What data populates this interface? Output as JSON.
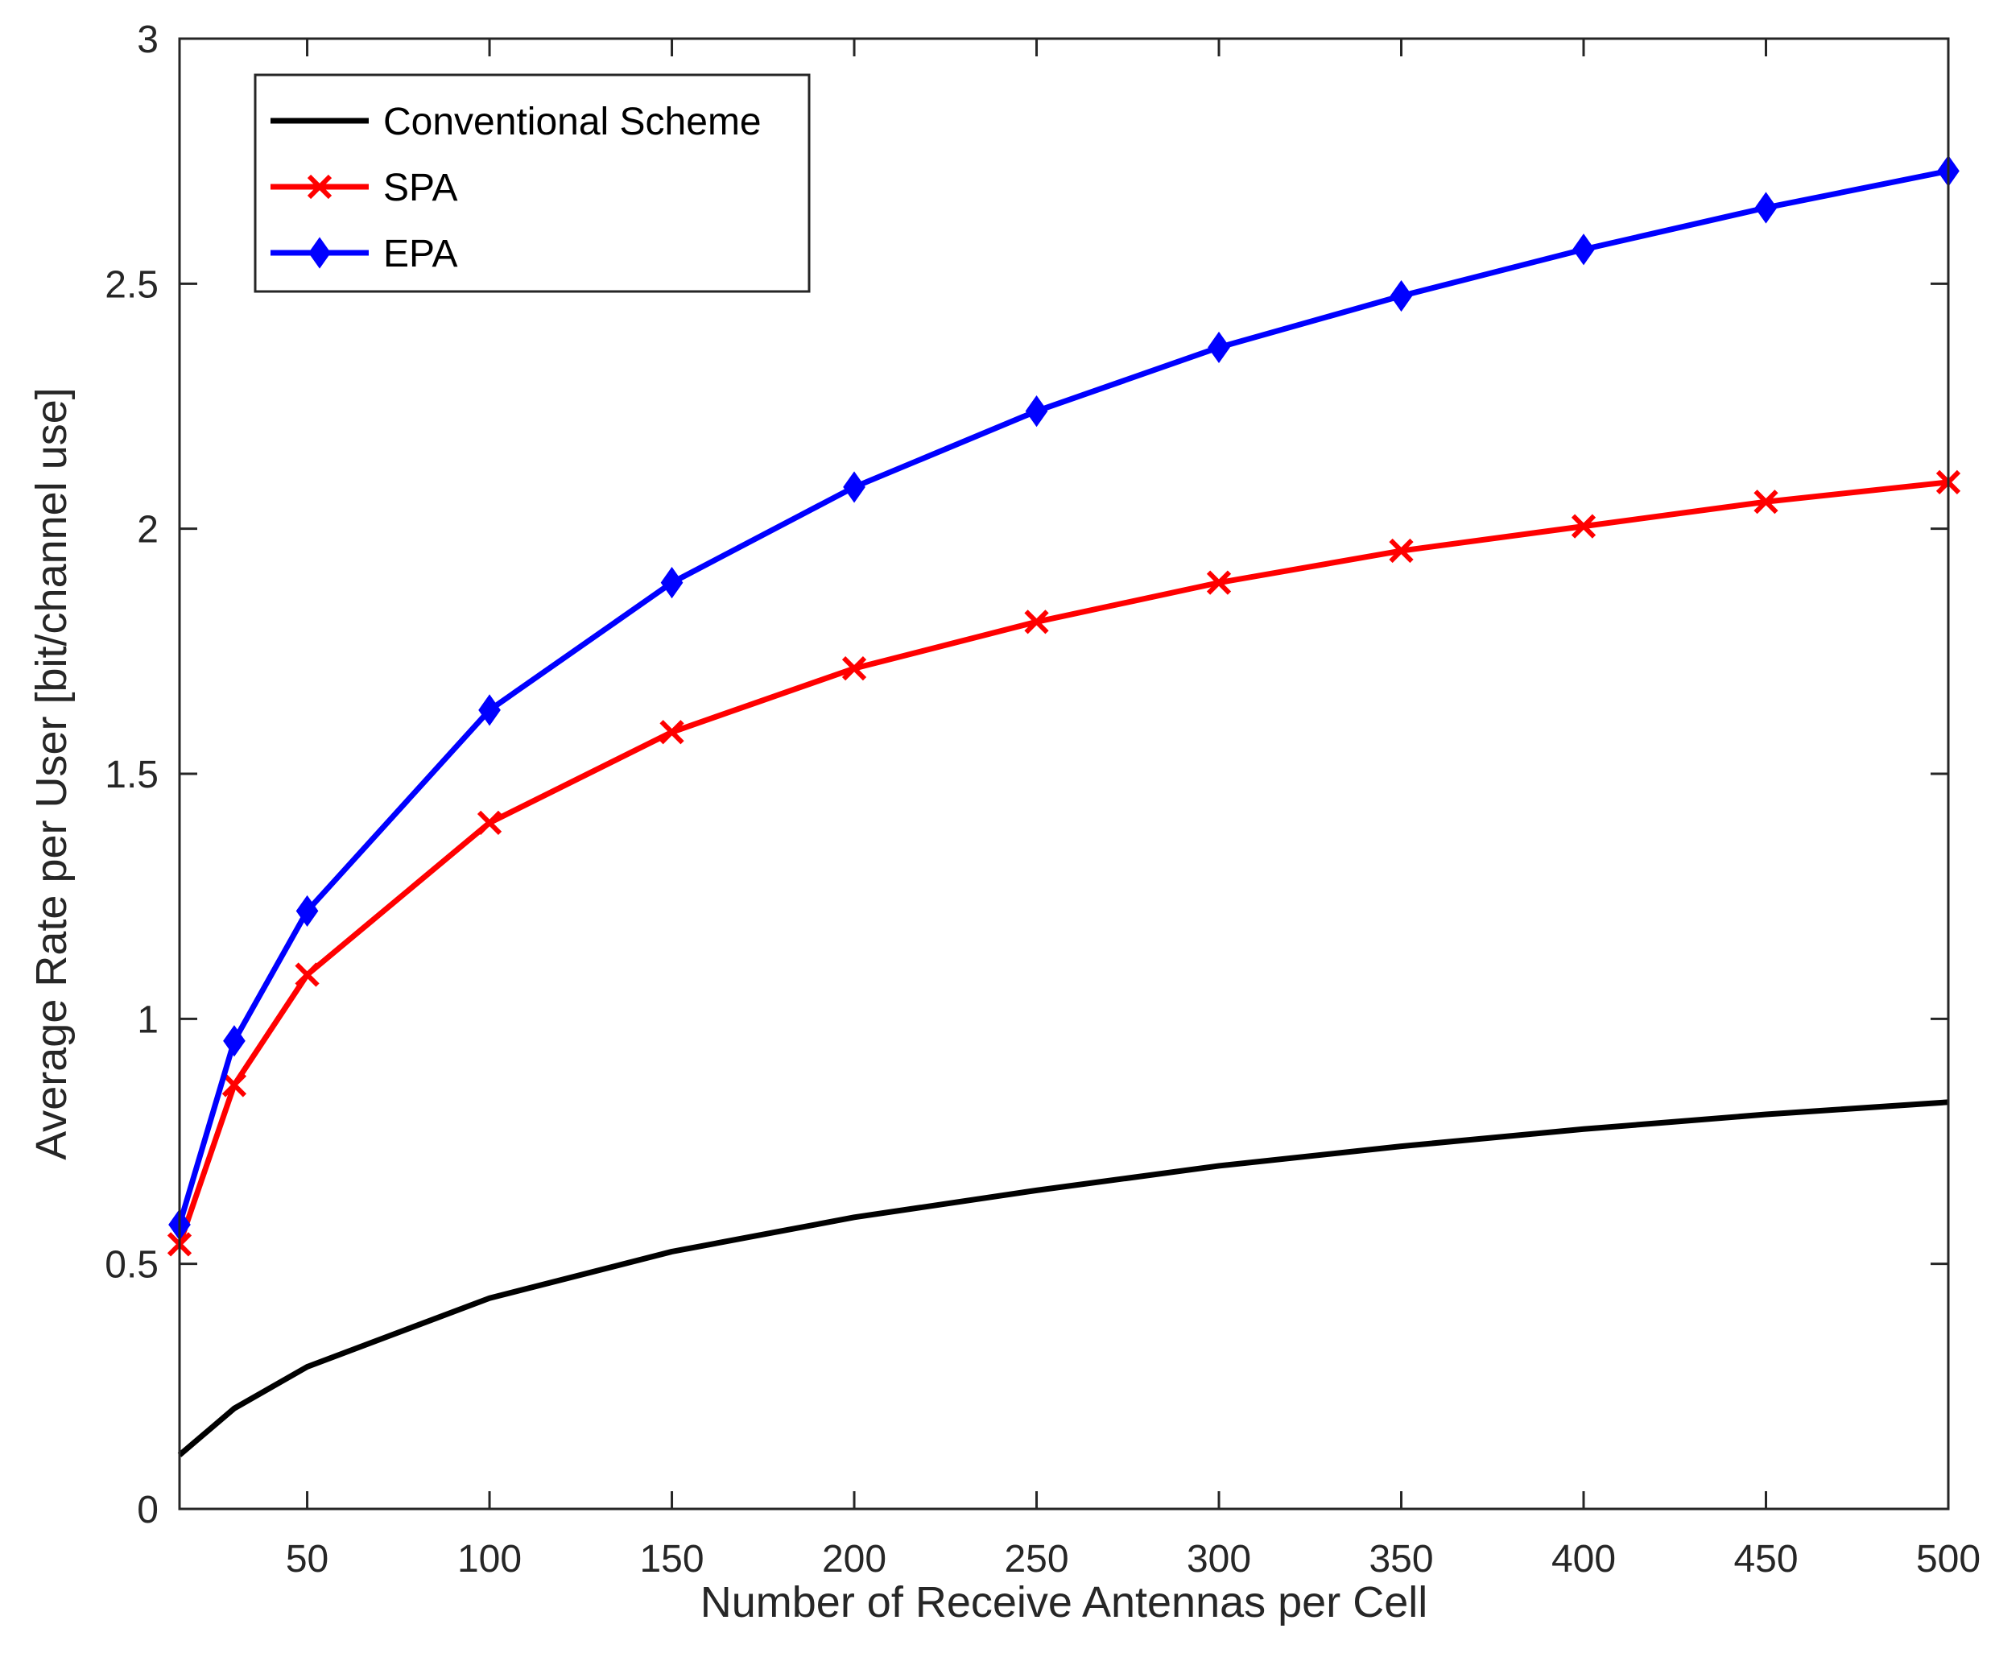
{
  "chart_data": {
    "type": "line",
    "title": "",
    "xlabel": "Number of Receive Antennas per Cell",
    "ylabel": "Average Rate per User [bit/channel use]",
    "xlim": [
      15,
      500
    ],
    "ylim": [
      0,
      3
    ],
    "xticks": [
      50,
      100,
      150,
      200,
      250,
      300,
      350,
      400,
      450,
      500
    ],
    "yticks": [
      0,
      0.5,
      1,
      1.5,
      2,
      2.5,
      3
    ],
    "grid": false,
    "legend_position": "top-left",
    "x": [
      15,
      30,
      50,
      100,
      150,
      200,
      250,
      300,
      350,
      400,
      450,
      500
    ],
    "series": [
      {
        "name": "Conventional Scheme",
        "color": "#000000",
        "marker": "none",
        "values": [
          0.11,
          0.205,
          0.29,
          0.43,
          0.525,
          0.595,
          0.65,
          0.7,
          0.74,
          0.775,
          0.805,
          0.83
        ]
      },
      {
        "name": "SPA",
        "color": "#ff0000",
        "marker": "x",
        "values": [
          0.54,
          0.865,
          1.09,
          1.4,
          1.585,
          1.715,
          1.81,
          1.89,
          1.955,
          2.005,
          2.055,
          2.095
        ]
      },
      {
        "name": "EPA",
        "color": "#0000ff",
        "marker": "diamond",
        "values": [
          0.58,
          0.955,
          1.22,
          1.63,
          1.89,
          2.085,
          2.24,
          2.37,
          2.475,
          2.57,
          2.655,
          2.73
        ]
      }
    ]
  }
}
